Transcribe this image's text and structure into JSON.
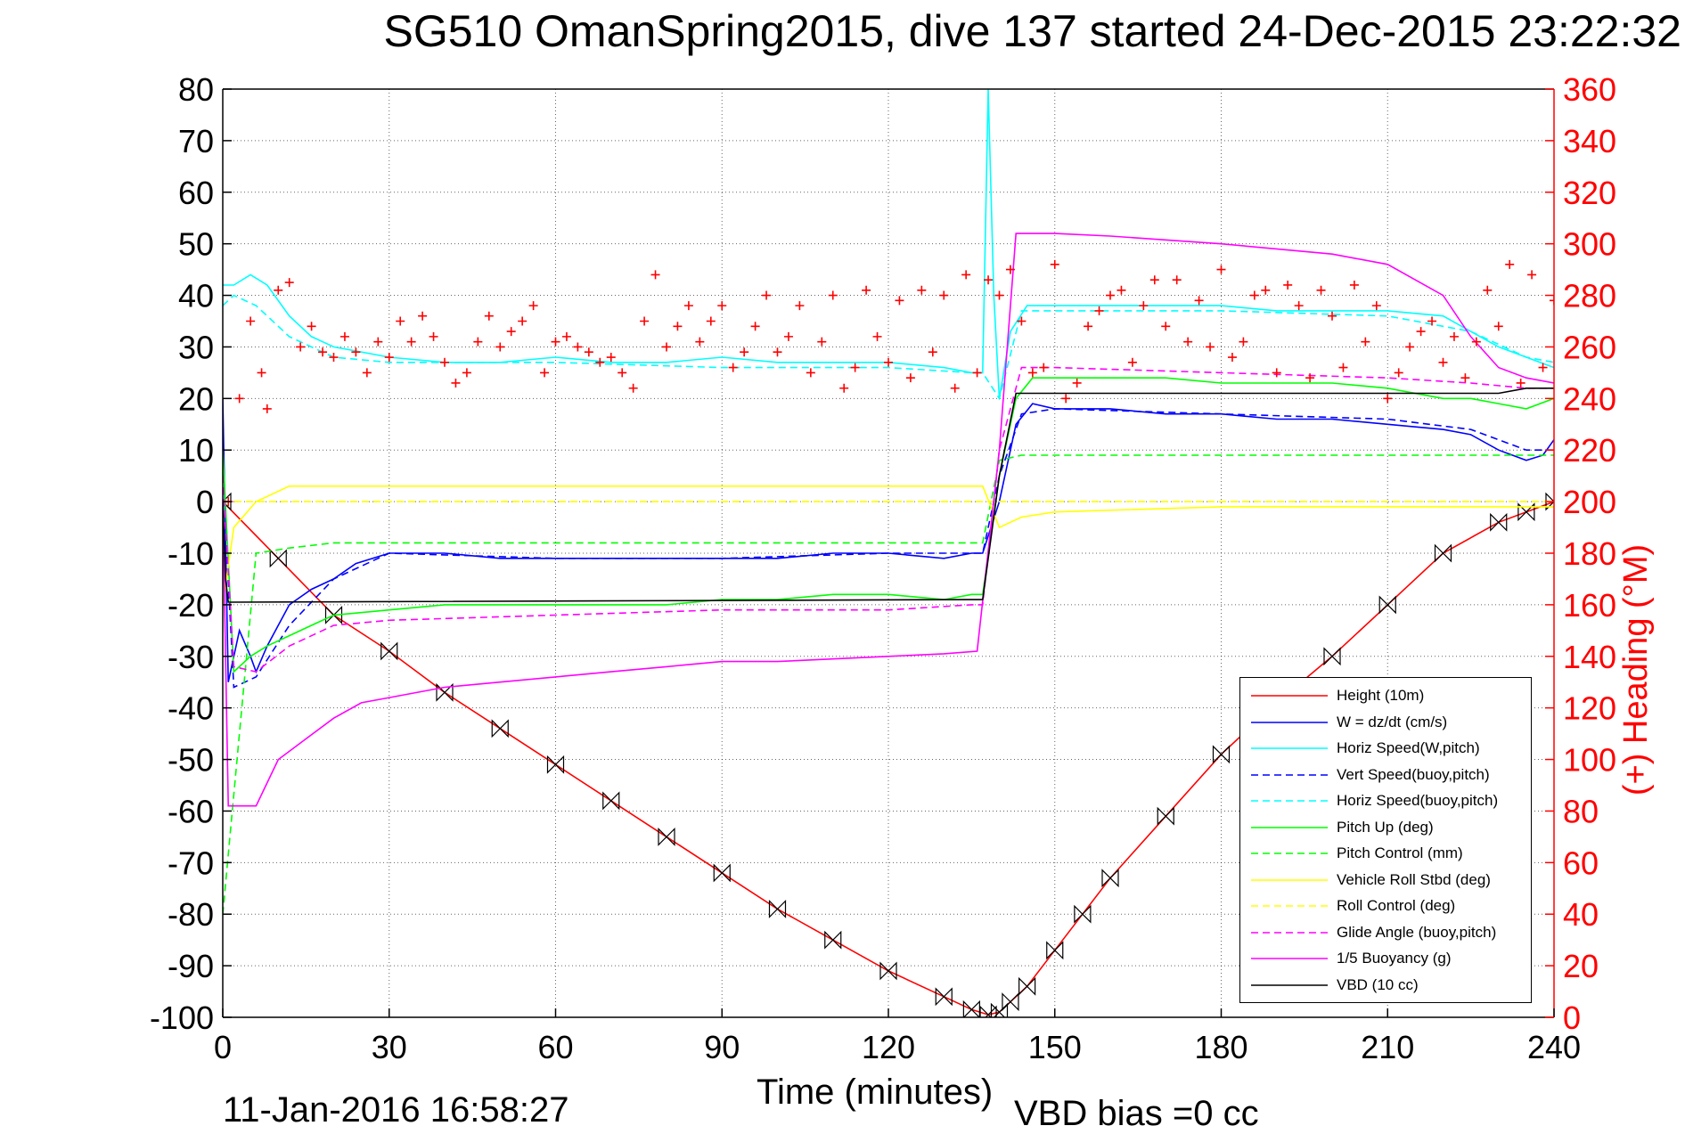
{
  "title": "SG510 OmanSpring2015, dive 137 started 24-Dec-2015 23:22:32",
  "footer": {
    "date": "11-Jan-2016 16:58:27",
    "vbd_bias": "VBD bias =0 cc"
  },
  "chart_data": {
    "type": "line",
    "title": "SG510 OmanSpring2015, dive 137 started 24-Dec-2015 23:22:32",
    "xlabel": "Time (minutes)",
    "ylabel": "",
    "y2label": "(+) Heading (°M)",
    "xlim": [
      0,
      240
    ],
    "ylim": [
      -100,
      80
    ],
    "y2lim": [
      0,
      360
    ],
    "x_ticks": [
      0,
      30,
      60,
      90,
      120,
      150,
      180,
      210,
      240
    ],
    "y_ticks": [
      -100,
      -90,
      -80,
      -70,
      -60,
      -50,
      -40,
      -30,
      -20,
      -10,
      0,
      10,
      20,
      30,
      40,
      50,
      60,
      70,
      80
    ],
    "y2_ticks": [
      0,
      20,
      40,
      60,
      80,
      100,
      120,
      140,
      160,
      180,
      200,
      220,
      240,
      260,
      280,
      300,
      320,
      340,
      360
    ],
    "grid": true,
    "legend_position": "bottom-right",
    "colors": {
      "height": "#ff0000",
      "w": "#0000ff",
      "horiz_w": "#00ffff",
      "vert_buoy": "#0000ff",
      "horiz_buoy": "#00ffff",
      "pitch": "#00ff00",
      "pitch_ctl": "#00ff00",
      "roll": "#ffff00",
      "roll_ctl": "#ffff00",
      "glide": "#ff00ff",
      "buoyancy": "#ff00ff",
      "vbd": "#000000",
      "heading": "#ff0000",
      "axis_right": "#ff0000"
    },
    "series": [
      {
        "key": "height",
        "name": "Height (10m)",
        "style": "solid",
        "color": "#ff0000",
        "marker": "hourglass",
        "x": [
          0,
          10,
          20,
          30,
          40,
          50,
          60,
          70,
          80,
          90,
          100,
          110,
          120,
          130,
          135,
          138,
          140,
          142,
          145,
          150,
          155,
          160,
          170,
          180,
          190,
          200,
          210,
          220,
          230,
          235,
          240
        ],
        "y": [
          0,
          -11,
          -22,
          -29,
          -37,
          -44,
          -51,
          -58,
          -65,
          -72,
          -79,
          -85,
          -91,
          -96,
          -98.5,
          -99.5,
          -99,
          -97,
          -94,
          -87,
          -80,
          -73,
          -61,
          -49,
          -39,
          -30,
          -20,
          -10,
          -4,
          -2,
          0
        ]
      },
      {
        "key": "w",
        "name": "W = dz/dt (cm/s)",
        "style": "solid",
        "color": "#0000ff",
        "x": [
          0,
          1,
          3,
          5,
          6,
          8,
          12,
          16,
          20,
          24,
          30,
          40,
          50,
          60,
          70,
          80,
          90,
          100,
          110,
          120,
          130,
          135,
          137,
          140,
          143,
          146,
          150,
          160,
          170,
          180,
          190,
          200,
          210,
          220,
          225,
          230,
          235,
          238,
          240
        ],
        "y": [
          20,
          -35,
          -25,
          -30,
          -33,
          -28,
          -20,
          -17,
          -15,
          -12,
          -10,
          -10,
          -11,
          -11,
          -11,
          -11,
          -11,
          -11,
          -10,
          -10,
          -11,
          -10,
          -10,
          0,
          15,
          19,
          18,
          18,
          17,
          17,
          16,
          16,
          15,
          14,
          13,
          10,
          8,
          9,
          12
        ]
      },
      {
        "key": "horiz_w",
        "name": "Horiz Speed(W,pitch)",
        "style": "solid",
        "color": "#00ffff",
        "x": [
          0,
          2,
          5,
          8,
          12,
          16,
          20,
          30,
          40,
          50,
          60,
          70,
          80,
          90,
          100,
          110,
          120,
          130,
          135,
          137,
          138,
          139,
          140,
          142,
          145,
          150,
          160,
          170,
          180,
          190,
          200,
          210,
          220,
          225,
          230,
          235,
          240
        ],
        "y": [
          42,
          42,
          44,
          42,
          36,
          32,
          30,
          28,
          27,
          27,
          28,
          27,
          27,
          28,
          27,
          27,
          27,
          26,
          25,
          25,
          80,
          40,
          20,
          33,
          38,
          38,
          38,
          38,
          38,
          37,
          37,
          37,
          36,
          33,
          30,
          28,
          26
        ]
      },
      {
        "key": "vert_buoy",
        "name": "Vert Speed(buoy,pitch)",
        "style": "dashed",
        "color": "#0000ff",
        "x": [
          0,
          2,
          6,
          12,
          20,
          30,
          60,
          90,
          120,
          135,
          137,
          140,
          144,
          150,
          180,
          210,
          225,
          235,
          240
        ],
        "y": [
          5,
          -36,
          -34,
          -24,
          -15,
          -10,
          -11,
          -11,
          -10,
          -10,
          -10,
          5,
          17,
          18,
          17,
          16,
          14,
          10,
          10
        ]
      },
      {
        "key": "horiz_buoy",
        "name": "Horiz Speed(buoy,pitch)",
        "style": "dashed",
        "color": "#00ffff",
        "x": [
          0,
          2,
          6,
          12,
          20,
          30,
          60,
          90,
          120,
          135,
          137,
          140,
          144,
          150,
          180,
          210,
          225,
          235,
          240
        ],
        "y": [
          38,
          40,
          38,
          32,
          28,
          27,
          27,
          26,
          26,
          25,
          25,
          20,
          37,
          37,
          37,
          36,
          33,
          28,
          27
        ]
      },
      {
        "key": "pitch",
        "name": "Pitch Up (deg)",
        "style": "solid",
        "color": "#00ff00",
        "x": [
          0,
          2,
          5,
          8,
          12,
          16,
          20,
          30,
          40,
          50,
          60,
          70,
          80,
          90,
          100,
          110,
          120,
          130,
          135,
          137,
          140,
          143,
          146,
          150,
          160,
          170,
          180,
          190,
          200,
          210,
          220,
          225,
          230,
          235,
          240
        ],
        "y": [
          10,
          -33,
          -30,
          -28,
          -26,
          -24,
          -22,
          -21,
          -20,
          -20,
          -20,
          -20,
          -20,
          -19,
          -19,
          -18,
          -18,
          -19,
          -18,
          -18,
          5,
          20,
          24,
          24,
          24,
          24,
          23,
          23,
          23,
          22,
          20,
          20,
          19,
          18,
          20
        ]
      },
      {
        "key": "pitch_ctl",
        "name": "Pitch Control (mm)",
        "style": "dashed",
        "color": "#00ff00",
        "x": [
          0,
          6,
          12,
          20,
          30,
          60,
          90,
          120,
          135,
          137,
          140,
          144,
          150,
          180,
          210,
          240
        ],
        "y": [
          -80,
          -10,
          -9,
          -8,
          -8,
          -8,
          -8,
          -8,
          -8,
          -8,
          8,
          9,
          9,
          9,
          9,
          9
        ]
      },
      {
        "key": "roll",
        "name": "Vehicle Roll Stbd (deg)",
        "style": "solid",
        "color": "#ffff00",
        "x": [
          0,
          2,
          6,
          12,
          20,
          30,
          40,
          60,
          80,
          100,
          120,
          137,
          140,
          144,
          150,
          180,
          200,
          210,
          220,
          230,
          235,
          240
        ],
        "y": [
          -20,
          -5,
          0,
          3,
          3,
          3,
          3,
          3,
          3,
          3,
          3,
          3,
          -5,
          -3,
          -2,
          -1,
          -1,
          -1,
          -1,
          -1,
          -1,
          -1
        ]
      },
      {
        "key": "roll_ctl",
        "name": "Roll Control (deg)",
        "style": "dashed",
        "color": "#ffff00",
        "x": [
          0,
          240
        ],
        "y": [
          0,
          0
        ]
      },
      {
        "key": "glide",
        "name": "Glide Angle (buoy,pitch)",
        "style": "dashed",
        "color": "#ff00ff",
        "x": [
          0,
          2,
          6,
          12,
          20,
          30,
          60,
          90,
          120,
          135,
          137,
          140,
          144,
          150,
          180,
          210,
          225,
          235,
          240
        ],
        "y": [
          5,
          -32,
          -33,
          -28,
          -24,
          -23,
          -22,
          -21,
          -21,
          -20,
          -20,
          10,
          26,
          26,
          25,
          24,
          23,
          22,
          22
        ]
      },
      {
        "key": "buoyancy",
        "name": "1/5 Buoyancy (g)",
        "style": "solid",
        "color": "#ff00ff",
        "x": [
          0,
          1,
          6,
          10,
          15,
          20,
          25,
          30,
          40,
          50,
          60,
          70,
          80,
          90,
          100,
          110,
          120,
          130,
          136,
          140,
          143,
          150,
          160,
          180,
          200,
          210,
          220,
          225,
          230,
          235,
          240
        ],
        "y": [
          0,
          -59,
          -59,
          -50,
          -46,
          -42,
          -39,
          -38,
          -36,
          -35,
          -34,
          -33,
          -32,
          -31,
          -31,
          -30.5,
          -30,
          -29.5,
          -29,
          10,
          52,
          52,
          51.5,
          50,
          48,
          46,
          40,
          32,
          26,
          24,
          23
        ]
      },
      {
        "key": "vbd",
        "name": "VBD (10 cc)",
        "style": "solid",
        "color": "#000000",
        "x": [
          0,
          0.5,
          1,
          135,
          137,
          140,
          143,
          150,
          180,
          210,
          230,
          235,
          240
        ],
        "y": [
          0,
          -15,
          -19.5,
          -19,
          -19,
          5,
          21,
          21,
          21,
          21,
          21,
          22,
          22
        ]
      }
    ],
    "heading_series": {
      "name": "(+) Heading",
      "axis": "right",
      "marker": "+",
      "color": "#ff0000",
      "x": [
        1,
        3,
        5,
        7,
        8,
        10,
        12,
        14,
        16,
        18,
        20,
        22,
        24,
        26,
        28,
        30,
        32,
        34,
        36,
        38,
        40,
        42,
        44,
        46,
        48,
        50,
        52,
        54,
        56,
        58,
        60,
        62,
        64,
        66,
        68,
        70,
        72,
        74,
        76,
        78,
        80,
        82,
        84,
        86,
        88,
        90,
        92,
        94,
        96,
        98,
        100,
        102,
        104,
        106,
        108,
        110,
        112,
        114,
        116,
        118,
        120,
        122,
        124,
        126,
        128,
        130,
        132,
        134,
        136,
        138,
        140,
        142,
        144,
        146,
        148,
        150,
        152,
        154,
        156,
        158,
        160,
        162,
        164,
        166,
        168,
        170,
        172,
        174,
        176,
        178,
        180,
        182,
        184,
        186,
        188,
        190,
        192,
        194,
        196,
        198,
        200,
        202,
        204,
        206,
        208,
        210,
        212,
        214,
        216,
        218,
        220,
        222,
        224,
        226,
        228,
        230,
        232,
        234,
        236,
        238,
        240
      ],
      "y": [
        200,
        240,
        270,
        250,
        236,
        282,
        285,
        260,
        268,
        258,
        256,
        264,
        258,
        250,
        262,
        256,
        270,
        262,
        272,
        264,
        254,
        246,
        250,
        262,
        272,
        260,
        266,
        270,
        276,
        250,
        262,
        264,
        260,
        258,
        254,
        256,
        250,
        244,
        270,
        288,
        260,
        268,
        276,
        262,
        270,
        276,
        252,
        258,
        268,
        280,
        258,
        264,
        276,
        250,
        262,
        280,
        244,
        252,
        282,
        264,
        254,
        278,
        248,
        282,
        258,
        280,
        244,
        288,
        250,
        286,
        280,
        290,
        270,
        250,
        252,
        292,
        240,
        246,
        268,
        274,
        280,
        282,
        254,
        276,
        286,
        268,
        286,
        262,
        278,
        260,
        290,
        256,
        262,
        280,
        282,
        250,
        284,
        276,
        248,
        282,
        272,
        252,
        284,
        262,
        276,
        240,
        250,
        260,
        266,
        270,
        254,
        264,
        248,
        262,
        282,
        268,
        292,
        246,
        288,
        252,
        278
      ]
    },
    "legend": [
      "Height (10m)",
      "W = dz/dt (cm/s)",
      "Horiz Speed(W,pitch)",
      "Vert Speed(buoy,pitch)",
      "Horiz Speed(buoy,pitch)",
      "Pitch Up (deg)",
      "Pitch Control (mm)",
      "Vehicle Roll Stbd (deg)",
      "Roll Control (deg)",
      "Glide Angle (buoy,pitch)",
      "1/5 Buoyancy (g)",
      "VBD (10 cc)"
    ]
  }
}
